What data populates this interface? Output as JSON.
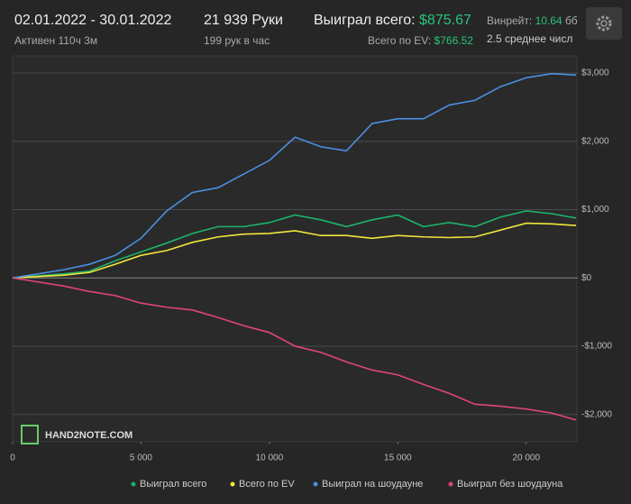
{
  "header": {
    "dates": "02.01.2022 - 30.01.2022",
    "active": "Активен 110ч 3м",
    "hands": "21 939 Руки",
    "rate": "199 рук в час",
    "won_label": "Выиграл всего:",
    "won_value": "$875.67",
    "ev_label": "Всего по EV:",
    "ev_value": "$766.52",
    "winrate_label": "Винрейт:",
    "winrate_value": "10.64",
    "winrate_unit": "бб",
    "avg": "2.5 среднее числ"
  },
  "logo": "HAND2NOTE.COM",
  "chart_data": {
    "type": "line",
    "x": [
      0,
      1000,
      2000,
      3000,
      4000,
      5000,
      6000,
      7000,
      8000,
      9000,
      10000,
      11000,
      12000,
      13000,
      14000,
      15000,
      16000,
      17000,
      18000,
      19000,
      20000,
      21000,
      21939
    ],
    "series": [
      {
        "name": "Выиграл всего",
        "color": "#1db36b",
        "values": [
          0,
          30,
          60,
          100,
          250,
          380,
          510,
          650,
          750,
          750,
          810,
          920,
          850,
          750,
          850,
          920,
          750,
          810,
          750,
          890,
          980,
          940,
          876
        ]
      },
      {
        "name": "Всего по EV",
        "color": "#f0e63c",
        "values": [
          0,
          20,
          40,
          80,
          200,
          330,
          400,
          520,
          600,
          640,
          650,
          690,
          620,
          620,
          580,
          620,
          600,
          590,
          600,
          700,
          800,
          790,
          767
        ]
      },
      {
        "name": "Выиграл на шоудауне",
        "color": "#4a90e2",
        "values": [
          0,
          60,
          120,
          200,
          330,
          580,
          980,
          1250,
          1320,
          1520,
          1720,
          2060,
          1920,
          1860,
          2260,
          2330,
          2330,
          2530,
          2600,
          2800,
          2930,
          2990,
          2970
        ]
      },
      {
        "name": "Выиграл без шоудауна",
        "color": "#e0457b",
        "values": [
          0,
          -60,
          -120,
          -200,
          -260,
          -370,
          -430,
          -470,
          -580,
          -700,
          -800,
          -1000,
          -1090,
          -1230,
          -1350,
          -1420,
          -1560,
          -1690,
          -1850,
          -1880,
          -1920,
          -1980,
          -2080
        ]
      }
    ],
    "xlim": [
      0,
      21939
    ],
    "ylim": [
      -2400,
      3250
    ],
    "xticks": [
      0,
      {
        "value": 5000,
        "label": "5 000"
      },
      {
        "value": 10000,
        "label": "10 000"
      },
      {
        "value": 15000,
        "label": "15 000"
      },
      {
        "value": 20000,
        "label": "20 000"
      }
    ],
    "yticks": [
      {
        "value": 3000,
        "label": "$3,000"
      },
      {
        "value": 2000,
        "label": "$2,000"
      },
      {
        "value": 1000,
        "label": "$1,000"
      },
      {
        "value": 0,
        "label": "$0"
      },
      {
        "value": -1000,
        "label": "-$1,000"
      },
      {
        "value": -2000,
        "label": "-$2,000"
      }
    ],
    "grid": true,
    "legend": "bottom"
  }
}
